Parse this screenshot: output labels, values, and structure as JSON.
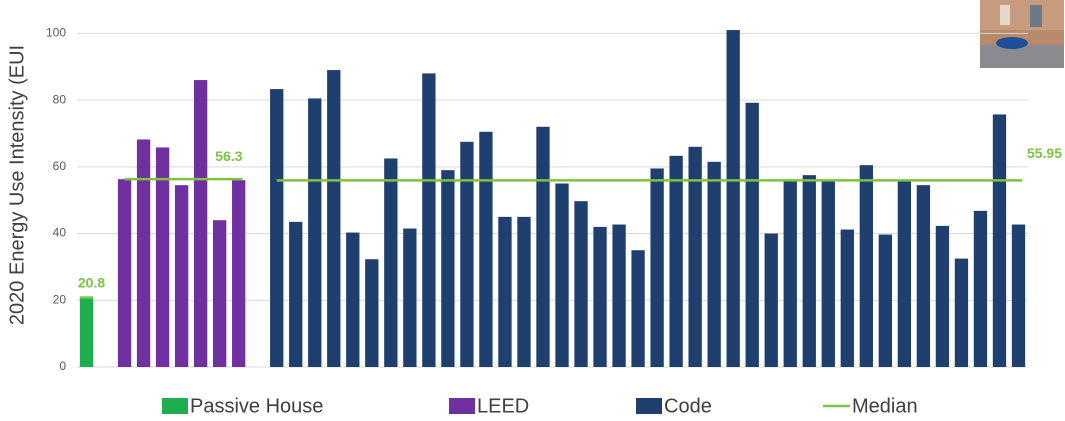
{
  "chart_data": {
    "type": "bar",
    "y_label": "2020 Energy Use Intensity (EUI",
    "ylim": [
      0,
      110
    ],
    "yticks": [
      0,
      20,
      40,
      60,
      80,
      100
    ],
    "grid": true,
    "categories": [
      null,
      null,
      null,
      null,
      null,
      null,
      null,
      null,
      null,
      null,
      null,
      null,
      null,
      null,
      null,
      null,
      null,
      null,
      null,
      null,
      null,
      null,
      null,
      null,
      null,
      null,
      null,
      null,
      null,
      null,
      null,
      null,
      null,
      null,
      null,
      null,
      null,
      null,
      null,
      null,
      null,
      null,
      null,
      null,
      null,
      null,
      null,
      null,
      null,
      null
    ],
    "series": [
      {
        "name": "Passive House",
        "color": "#1fae4f",
        "median": 20.8,
        "values": [
          20.8,
          null,
          null,
          null,
          null,
          null,
          null,
          null,
          null,
          null,
          null,
          null,
          null,
          null,
          null,
          null,
          null,
          null,
          null,
          null,
          null,
          null,
          null,
          null,
          null,
          null,
          null,
          null,
          null,
          null,
          null,
          null,
          null,
          null,
          null,
          null,
          null,
          null,
          null,
          null,
          null,
          null,
          null,
          null,
          null,
          null,
          null,
          null,
          null,
          null
        ]
      },
      {
        "name": "LEED",
        "color": "#7030a0",
        "median": 56.3,
        "values": [
          null,
          null,
          56.3,
          68.2,
          65.8,
          54.5,
          86,
          44,
          56,
          null,
          null,
          null,
          null,
          null,
          null,
          null,
          null,
          null,
          null,
          null,
          null,
          null,
          null,
          null,
          null,
          null,
          null,
          null,
          null,
          null,
          null,
          null,
          null,
          null,
          null,
          null,
          null,
          null,
          null,
          null,
          null,
          null,
          null,
          null,
          null,
          null,
          null,
          null,
          null,
          null
        ]
      },
      {
        "name": "Code",
        "color": "#1f3f6e",
        "median": 55.95,
        "values": [
          null,
          null,
          null,
          null,
          null,
          null,
          null,
          null,
          null,
          null,
          83.3,
          43.5,
          80.5,
          89,
          40.3,
          32.3,
          62.5,
          41.5,
          88,
          59,
          67.5,
          70.5,
          45,
          45,
          72,
          55,
          49.7,
          42,
          42.7,
          35,
          59.5,
          63.3,
          66,
          61.5,
          101,
          79.2,
          40,
          56,
          57.5,
          56,
          41.2,
          60.5,
          39.7,
          56.2,
          54.5,
          42.3,
          32.5,
          46.8,
          75.7,
          42.7
        ]
      }
    ],
    "median_line": {
      "name": "Median",
      "color": "#7dc242"
    }
  }
}
